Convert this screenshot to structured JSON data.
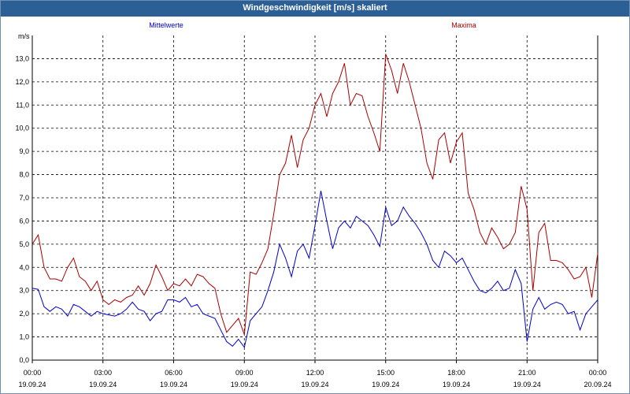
{
  "title": "Windgeschwindigkeit [m/s] skaliert",
  "colors": {
    "title_bar": "#2d5f97",
    "mean_series": "#0000cc",
    "max_series": "#aa0000",
    "grid": "#000000"
  },
  "chart_data": {
    "type": "line",
    "title": "Windgeschwindigkeit [m/s] skaliert",
    "ylabel": "m/s",
    "xlabel": "",
    "ylim": [
      0,
      14
    ],
    "xlim": [
      0,
      24
    ],
    "grid": true,
    "legend": "top",
    "y_ticks": [
      "0,0",
      "1,0",
      "2,0",
      "3,0",
      "4,0",
      "5,0",
      "6,0",
      "7,0",
      "8,0",
      "9,0",
      "10,0",
      "11,0",
      "12,0",
      "13,0"
    ],
    "x_ticks": [
      {
        "time": "00:00",
        "date": "19.09.24"
      },
      {
        "time": "03:00",
        "date": "19.09.24"
      },
      {
        "time": "06:00",
        "date": "19.09.24"
      },
      {
        "time": "09:00",
        "date": "19.09.24"
      },
      {
        "time": "12:00",
        "date": "19.09.24"
      },
      {
        "time": "15:00",
        "date": "19.09.24"
      },
      {
        "time": "18:00",
        "date": "19.09.24"
      },
      {
        "time": "21:00",
        "date": "19.09.24"
      },
      {
        "time": "00:00",
        "date": "20.09.24"
      }
    ],
    "series": [
      {
        "name": "Mittelwerte",
        "color": "#0000cc",
        "x": [
          0.0,
          0.25,
          0.5,
          0.75,
          1.0,
          1.25,
          1.5,
          1.75,
          2.0,
          2.25,
          2.5,
          2.75,
          3.0,
          3.25,
          3.5,
          3.75,
          4.0,
          4.25,
          4.5,
          4.75,
          5.0,
          5.25,
          5.5,
          5.75,
          6.0,
          6.25,
          6.5,
          6.75,
          7.0,
          7.25,
          7.5,
          7.75,
          8.0,
          8.25,
          8.5,
          8.75,
          9.0,
          9.25,
          9.5,
          9.75,
          10.0,
          10.25,
          10.5,
          10.75,
          11.0,
          11.25,
          11.5,
          11.75,
          12.0,
          12.25,
          12.5,
          12.75,
          13.0,
          13.25,
          13.5,
          13.75,
          14.0,
          14.25,
          14.5,
          14.75,
          15.0,
          15.25,
          15.5,
          15.75,
          16.0,
          16.25,
          16.5,
          16.75,
          17.0,
          17.25,
          17.5,
          17.75,
          18.0,
          18.25,
          18.5,
          18.75,
          19.0,
          19.25,
          19.5,
          19.75,
          20.0,
          20.25,
          20.5,
          20.75,
          21.0,
          21.25,
          21.5,
          21.75,
          22.0,
          22.25,
          22.5,
          22.75,
          23.0,
          23.25,
          23.5,
          23.75,
          24.0
        ],
        "values": [
          3.1,
          3.05,
          2.3,
          2.1,
          2.3,
          2.2,
          1.9,
          2.4,
          2.3,
          2.1,
          1.9,
          2.1,
          2.0,
          1.95,
          1.9,
          2.0,
          2.2,
          2.5,
          2.2,
          2.1,
          1.7,
          2.0,
          2.1,
          2.6,
          2.6,
          2.5,
          2.7,
          2.3,
          2.4,
          2.0,
          1.9,
          1.8,
          1.3,
          0.8,
          0.6,
          0.9,
          0.55,
          1.7,
          2.0,
          2.3,
          3.0,
          3.8,
          5.0,
          4.4,
          3.6,
          4.7,
          5.0,
          4.4,
          5.8,
          7.3,
          6.0,
          4.8,
          5.7,
          6.0,
          5.7,
          6.2,
          6.0,
          5.8,
          5.4,
          4.9,
          6.6,
          5.8,
          6.0,
          6.6,
          6.2,
          5.9,
          5.5,
          5.0,
          4.3,
          4.0,
          4.7,
          4.5,
          4.2,
          4.4,
          3.9,
          3.4,
          3.0,
          2.9,
          3.1,
          3.4,
          3.0,
          3.1,
          3.9,
          3.3,
          0.8,
          2.2,
          2.7,
          2.2,
          2.4,
          2.5,
          2.4,
          2.0,
          2.1,
          1.3,
          2.0,
          2.3,
          2.6
        ]
      },
      {
        "name": "Maxima",
        "color": "#aa0000",
        "x": [
          0.0,
          0.25,
          0.5,
          0.75,
          1.0,
          1.25,
          1.5,
          1.75,
          2.0,
          2.25,
          2.5,
          2.75,
          3.0,
          3.25,
          3.5,
          3.75,
          4.0,
          4.25,
          4.5,
          4.75,
          5.0,
          5.25,
          5.5,
          5.75,
          6.0,
          6.25,
          6.5,
          6.75,
          7.0,
          7.25,
          7.5,
          7.75,
          8.0,
          8.25,
          8.5,
          8.75,
          9.0,
          9.25,
          9.5,
          9.75,
          10.0,
          10.25,
          10.5,
          10.75,
          11.0,
          11.25,
          11.5,
          11.75,
          12.0,
          12.25,
          12.5,
          12.75,
          13.0,
          13.25,
          13.5,
          13.75,
          14.0,
          14.25,
          14.5,
          14.75,
          15.0,
          15.25,
          15.5,
          15.75,
          16.0,
          16.25,
          16.5,
          16.75,
          17.0,
          17.25,
          17.5,
          17.75,
          18.0,
          18.25,
          18.5,
          18.75,
          19.0,
          19.25,
          19.5,
          19.75,
          20.0,
          20.25,
          20.5,
          20.75,
          21.0,
          21.25,
          21.5,
          21.75,
          22.0,
          22.25,
          22.5,
          22.75,
          23.0,
          23.25,
          23.5,
          23.75,
          24.0
        ],
        "values": [
          5.0,
          5.4,
          4.0,
          3.5,
          3.5,
          3.4,
          4.0,
          4.4,
          3.6,
          3.4,
          3.0,
          3.4,
          2.6,
          2.4,
          2.6,
          2.5,
          2.7,
          2.8,
          3.2,
          2.8,
          3.3,
          4.1,
          3.6,
          3.0,
          3.3,
          3.2,
          3.5,
          3.2,
          3.7,
          3.6,
          3.3,
          3.1,
          2.0,
          1.2,
          1.5,
          1.8,
          1.1,
          3.8,
          3.7,
          4.2,
          4.8,
          6.3,
          8.0,
          8.5,
          9.7,
          8.3,
          9.5,
          10.0,
          11.0,
          11.5,
          10.5,
          11.5,
          12.0,
          12.8,
          11.0,
          11.5,
          11.4,
          10.5,
          9.8,
          9.0,
          13.2,
          12.5,
          11.5,
          12.8,
          12.0,
          11.0,
          10.0,
          8.5,
          7.8,
          9.5,
          9.8,
          8.5,
          9.4,
          9.8,
          7.2,
          6.5,
          5.5,
          5.0,
          5.7,
          5.3,
          4.8,
          5.0,
          5.5,
          7.5,
          6.5,
          3.0,
          5.5,
          5.9,
          4.3,
          4.3,
          4.2,
          3.9,
          3.5,
          3.6,
          4.0,
          2.7,
          4.6
        ]
      }
    ]
  }
}
